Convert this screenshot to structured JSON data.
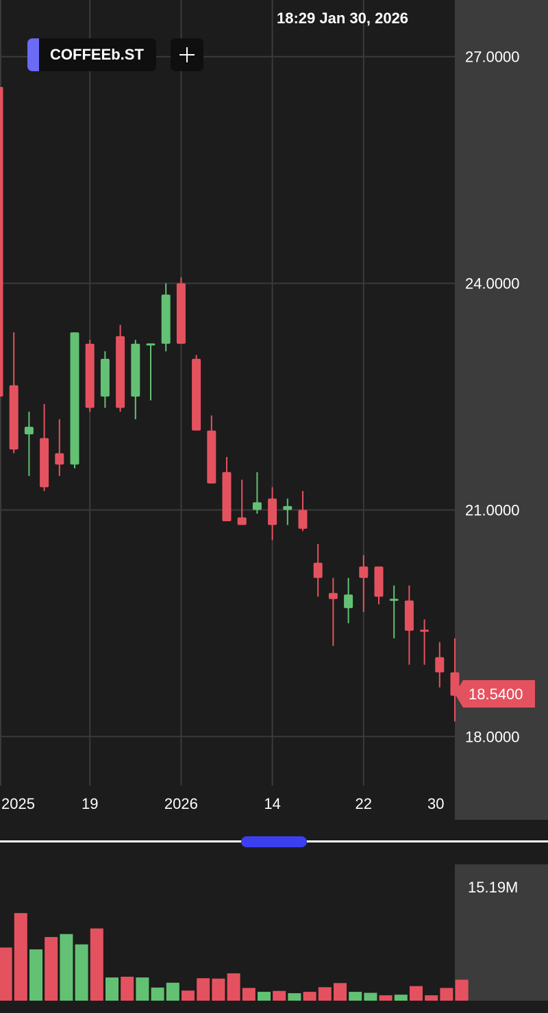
{
  "header": {
    "timestamp": "18:29 Jan 30, 2026",
    "ticker": "COFFEEb.ST",
    "ticker_color": "#6b6bf5"
  },
  "colors": {
    "up": "#63c174",
    "down": "#e5525f",
    "background": "#1c1c1c",
    "axis_panel": "#3c3c3c",
    "grid": "#3a3a3a",
    "accent": "#3b3ff0"
  },
  "last_price": {
    "label": "18.5400",
    "value": 18.54
  },
  "chart_data": [
    {
      "type": "candlestick",
      "title": "",
      "y_axis_side": "right",
      "ylim": [
        17.35,
        27.75
      ],
      "y_ticks": [
        27.0,
        24.0,
        21.0,
        18.0
      ],
      "y_tick_labels": [
        "27.0000",
        "24.0000",
        "21.0000",
        "18.0000"
      ],
      "x_ticks": [
        {
          "index": 6,
          "label": "19"
        },
        {
          "index": 12,
          "label": "2026"
        },
        {
          "index": 18,
          "label": "14"
        },
        {
          "index": 24,
          "label": "22"
        },
        {
          "index": 28.75,
          "label": "30"
        }
      ],
      "x_tick_left_label": "2025",
      "grid": true,
      "candles": [
        {
          "o": 26.6,
          "h": 27.0,
          "l": 22.5,
          "c": 22.5,
          "dir": "down"
        },
        {
          "o": 22.65,
          "h": 23.35,
          "l": 21.75,
          "c": 21.8,
          "dir": "down"
        },
        {
          "o": 22.0,
          "h": 22.3,
          "l": 21.45,
          "c": 22.1,
          "dir": "up"
        },
        {
          "o": 21.95,
          "h": 22.4,
          "l": 21.25,
          "c": 21.3,
          "dir": "down"
        },
        {
          "o": 21.75,
          "h": 22.2,
          "l": 21.45,
          "c": 21.6,
          "dir": "down"
        },
        {
          "o": 21.6,
          "h": 23.35,
          "l": 21.55,
          "c": 23.35,
          "dir": "up"
        },
        {
          "o": 23.2,
          "h": 23.25,
          "l": 22.3,
          "c": 22.35,
          "dir": "down"
        },
        {
          "o": 22.5,
          "h": 23.1,
          "l": 22.35,
          "c": 23.0,
          "dir": "up"
        },
        {
          "o": 23.3,
          "h": 23.45,
          "l": 22.3,
          "c": 22.35,
          "dir": "down"
        },
        {
          "o": 22.5,
          "h": 23.25,
          "l": 22.2,
          "c": 23.2,
          "dir": "up"
        },
        {
          "o": 23.2,
          "h": 23.2,
          "l": 22.45,
          "c": 23.18,
          "dir": "up"
        },
        {
          "o": 23.2,
          "h": 24.0,
          "l": 23.1,
          "c": 23.85,
          "dir": "up"
        },
        {
          "o": 24.0,
          "h": 24.08,
          "l": 23.2,
          "c": 23.2,
          "dir": "down"
        },
        {
          "o": 23.0,
          "h": 23.05,
          "l": 22.05,
          "c": 22.05,
          "dir": "down"
        },
        {
          "o": 22.05,
          "h": 22.25,
          "l": 21.35,
          "c": 21.35,
          "dir": "down"
        },
        {
          "o": 21.5,
          "h": 21.7,
          "l": 20.85,
          "c": 20.85,
          "dir": "down"
        },
        {
          "o": 20.9,
          "h": 21.4,
          "l": 20.8,
          "c": 20.8,
          "dir": "down"
        },
        {
          "o": 21.0,
          "h": 21.5,
          "l": 20.95,
          "c": 21.1,
          "dir": "up"
        },
        {
          "o": 21.15,
          "h": 21.3,
          "l": 20.6,
          "c": 20.8,
          "dir": "down"
        },
        {
          "o": 21.0,
          "h": 21.15,
          "l": 20.8,
          "c": 21.05,
          "dir": "up"
        },
        {
          "o": 21.0,
          "h": 21.25,
          "l": 20.72,
          "c": 20.75,
          "dir": "down"
        },
        {
          "o": 20.3,
          "h": 20.55,
          "l": 19.85,
          "c": 20.1,
          "dir": "down"
        },
        {
          "o": 19.9,
          "h": 20.1,
          "l": 19.2,
          "c": 19.82,
          "dir": "down"
        },
        {
          "o": 19.7,
          "h": 20.1,
          "l": 19.5,
          "c": 19.88,
          "dir": "up"
        },
        {
          "o": 20.25,
          "h": 20.4,
          "l": 19.65,
          "c": 20.1,
          "dir": "down"
        },
        {
          "o": 20.25,
          "h": 20.25,
          "l": 19.75,
          "c": 19.85,
          "dir": "down"
        },
        {
          "o": 19.8,
          "h": 20.0,
          "l": 19.3,
          "c": 19.82,
          "dir": "up"
        },
        {
          "o": 19.8,
          "h": 20.0,
          "l": 18.95,
          "c": 19.4,
          "dir": "down"
        },
        {
          "o": 19.4,
          "h": 19.55,
          "l": 18.95,
          "c": 19.4,
          "dir": "down"
        },
        {
          "o": 19.05,
          "h": 19.25,
          "l": 18.65,
          "c": 18.85,
          "dir": "down"
        },
        {
          "o": 18.85,
          "h": 19.3,
          "l": 18.2,
          "c": 18.54,
          "dir": "down"
        }
      ]
    },
    {
      "type": "bar",
      "title": "",
      "y_axis_side": "right",
      "y_tick_label": "15.19M",
      "ylim": [
        0,
        15.19
      ],
      "series": [
        {
          "values": [
            7.1,
            11.7,
            6.85,
            8.5,
            8.9,
            7.52,
            9.65,
            3.1,
            3.2,
            3.1,
            1.75,
            2.4,
            1.35,
            3.0,
            2.95,
            3.65,
            1.7,
            1.18,
            1.3,
            1.0,
            1.18,
            1.8,
            2.35,
            1.18,
            1.05,
            0.72,
            0.8,
            1.95,
            0.72,
            1.7,
            2.8
          ],
          "colors": [
            "down",
            "down",
            "up",
            "down",
            "up",
            "up",
            "down",
            "up",
            "down",
            "up",
            "up",
            "up",
            "down",
            "down",
            "down",
            "down",
            "down",
            "up",
            "down",
            "up",
            "down",
            "down",
            "down",
            "up",
            "up",
            "down",
            "up",
            "down",
            "down",
            "down",
            "down"
          ]
        }
      ]
    }
  ]
}
